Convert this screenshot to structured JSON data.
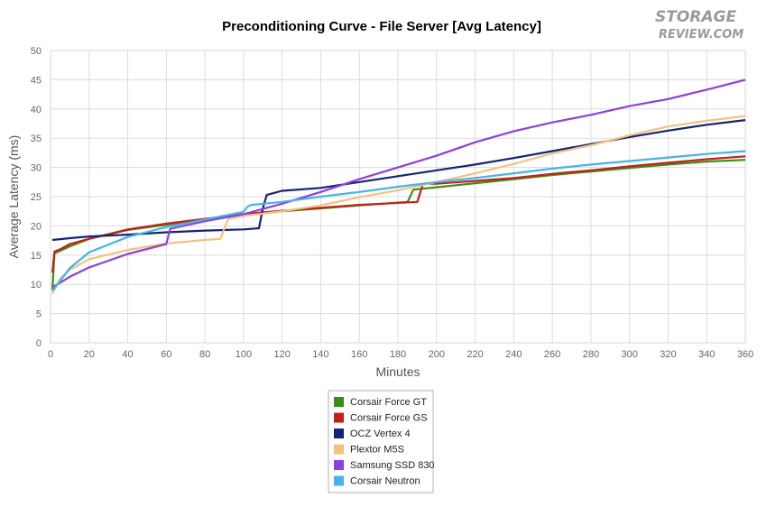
{
  "logo": {
    "line1": "STORAGE",
    "line2": "REVIEW.COM"
  },
  "chart_data": {
    "type": "line",
    "title": "Preconditioning Curve - File Server [Avg Latency]",
    "xlabel": "Minutes",
    "ylabel": "Average Latency (ms)",
    "xlim": [
      0,
      360
    ],
    "ylim": [
      0,
      50
    ],
    "xticks": [
      0,
      20,
      40,
      60,
      80,
      100,
      120,
      140,
      160,
      180,
      200,
      220,
      240,
      260,
      280,
      300,
      320,
      340,
      360
    ],
    "yticks": [
      0,
      5,
      10,
      15,
      20,
      25,
      30,
      35,
      40,
      45,
      50
    ],
    "grid": true,
    "legend_position": "bottom-center",
    "series": [
      {
        "name": "Corsair Force GT",
        "color": "#3a8f12",
        "points": [
          [
            1,
            9
          ],
          [
            2,
            15.3
          ],
          [
            10,
            16.5
          ],
          [
            20,
            17.8
          ],
          [
            40,
            19.3
          ],
          [
            60,
            20.2
          ],
          [
            80,
            21.1
          ],
          [
            100,
            21.9
          ],
          [
            120,
            22.5
          ],
          [
            140,
            23
          ],
          [
            160,
            23.5
          ],
          [
            185,
            24.1
          ],
          [
            188,
            26.2
          ],
          [
            200,
            26.6
          ],
          [
            220,
            27.3
          ],
          [
            240,
            28
          ],
          [
            260,
            28.7
          ],
          [
            280,
            29.3
          ],
          [
            300,
            29.9
          ],
          [
            320,
            30.5
          ],
          [
            340,
            31
          ],
          [
            360,
            31.3
          ]
        ]
      },
      {
        "name": "Corsair Force GS",
        "color": "#c0221b",
        "points": [
          [
            1,
            12
          ],
          [
            2,
            15.6
          ],
          [
            5,
            16
          ],
          [
            10,
            16.9
          ],
          [
            20,
            17.8
          ],
          [
            40,
            19.4
          ],
          [
            60,
            20.4
          ],
          [
            80,
            21.2
          ],
          [
            100,
            22
          ],
          [
            120,
            22.6
          ],
          [
            140,
            23.1
          ],
          [
            160,
            23.6
          ],
          [
            190,
            24.1
          ],
          [
            193,
            27.2
          ],
          [
            200,
            27.2
          ],
          [
            220,
            27.7
          ],
          [
            240,
            28.2
          ],
          [
            260,
            28.9
          ],
          [
            280,
            29.5
          ],
          [
            300,
            30.2
          ],
          [
            320,
            30.8
          ],
          [
            340,
            31.4
          ],
          [
            360,
            31.9
          ]
        ]
      },
      {
        "name": "OCZ Vertex 4",
        "color": "#14237a",
        "points": [
          [
            1,
            17.6
          ],
          [
            10,
            17.9
          ],
          [
            20,
            18.2
          ],
          [
            40,
            18.5
          ],
          [
            60,
            18.9
          ],
          [
            80,
            19.2
          ],
          [
            100,
            19.4
          ],
          [
            108,
            19.6
          ],
          [
            110,
            23
          ],
          [
            112,
            25.3
          ],
          [
            120,
            26
          ],
          [
            140,
            26.5
          ],
          [
            160,
            27.5
          ],
          [
            180,
            28.5
          ],
          [
            200,
            29.5
          ],
          [
            220,
            30.5
          ],
          [
            240,
            31.6
          ],
          [
            260,
            32.8
          ],
          [
            280,
            34
          ],
          [
            300,
            35.2
          ],
          [
            320,
            36.3
          ],
          [
            340,
            37.3
          ],
          [
            360,
            38.1
          ]
        ]
      },
      {
        "name": "Plextor M5S",
        "color": "#f2c37e",
        "points": [
          [
            1,
            8.4
          ],
          [
            5,
            11
          ],
          [
            10,
            12.5
          ],
          [
            20,
            14.3
          ],
          [
            40,
            15.9
          ],
          [
            60,
            17
          ],
          [
            80,
            17.6
          ],
          [
            88,
            17.8
          ],
          [
            92,
            21.2
          ],
          [
            100,
            21.7
          ],
          [
            120,
            22.5
          ],
          [
            140,
            23.5
          ],
          [
            160,
            24.9
          ],
          [
            180,
            26.1
          ],
          [
            200,
            27.5
          ],
          [
            220,
            29
          ],
          [
            240,
            30.6
          ],
          [
            260,
            32.4
          ],
          [
            280,
            33.8
          ],
          [
            300,
            35.5
          ],
          [
            320,
            37
          ],
          [
            340,
            38
          ],
          [
            360,
            38.8
          ]
        ]
      },
      {
        "name": "Samsung SSD 830",
        "color": "#8e3fe0",
        "points": [
          [
            1,
            9.5
          ],
          [
            5,
            10.3
          ],
          [
            10,
            11.3
          ],
          [
            20,
            12.9
          ],
          [
            40,
            15.2
          ],
          [
            60,
            16.9
          ],
          [
            62,
            19.5
          ],
          [
            80,
            20.8
          ],
          [
            100,
            22
          ],
          [
            120,
            23.8
          ],
          [
            140,
            25.8
          ],
          [
            160,
            28
          ],
          [
            180,
            30
          ],
          [
            200,
            32
          ],
          [
            220,
            34.3
          ],
          [
            240,
            36.2
          ],
          [
            260,
            37.7
          ],
          [
            280,
            39
          ],
          [
            300,
            40.5
          ],
          [
            320,
            41.7
          ],
          [
            340,
            43.3
          ],
          [
            360,
            45
          ]
        ]
      },
      {
        "name": "Corsair Neutron",
        "color": "#45b4e8",
        "points": [
          [
            1,
            8.9
          ],
          [
            5,
            10.6
          ],
          [
            10,
            12.8
          ],
          [
            20,
            15.5
          ],
          [
            40,
            18.1
          ],
          [
            60,
            19.8
          ],
          [
            80,
            21.1
          ],
          [
            100,
            22.4
          ],
          [
            102,
            23.3
          ],
          [
            104,
            23.6
          ],
          [
            120,
            24.1
          ],
          [
            140,
            25
          ],
          [
            160,
            25.8
          ],
          [
            180,
            26.7
          ],
          [
            200,
            27.5
          ],
          [
            220,
            28.2
          ],
          [
            240,
            29
          ],
          [
            260,
            29.8
          ],
          [
            280,
            30.5
          ],
          [
            300,
            31.1
          ],
          [
            320,
            31.7
          ],
          [
            340,
            32.3
          ],
          [
            360,
            32.8
          ]
        ]
      }
    ]
  }
}
